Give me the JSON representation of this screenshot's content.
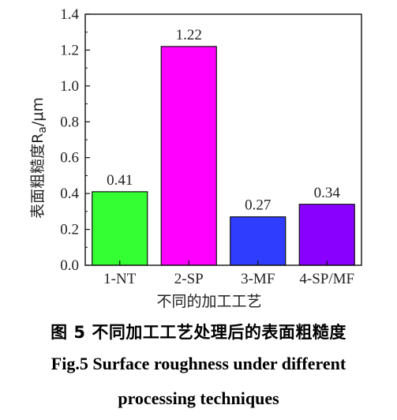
{
  "chart_data": {
    "type": "bar",
    "categories": [
      "1-NT",
      "2-SP",
      "3-MF",
      "4-SP/MF"
    ],
    "values": [
      0.41,
      1.22,
      0.27,
      0.34
    ],
    "data_labels": [
      "0.41",
      "1.22",
      "0.27",
      "0.34"
    ],
    "bar_colors": [
      "#33ff33",
      "#ff00ff",
      "#2f3dff",
      "#8a00ff"
    ],
    "xlabel": "不同的加工工艺",
    "ylabel_main": "表面粗糙度R",
    "ylabel_sub": "a",
    "ylabel_unit": "/μm",
    "ylim": [
      0,
      1.4
    ],
    "yticks": [
      "0.0",
      "0.2",
      "0.4",
      "0.6",
      "0.8",
      "1.0",
      "1.2",
      "1.4"
    ],
    "grid": false
  },
  "caption": {
    "cn": "图  5  不同加工工艺处理后的表面粗糙度",
    "en_line1": "Fig.5 Surface roughness under different",
    "en_line2": "processing techniques"
  }
}
